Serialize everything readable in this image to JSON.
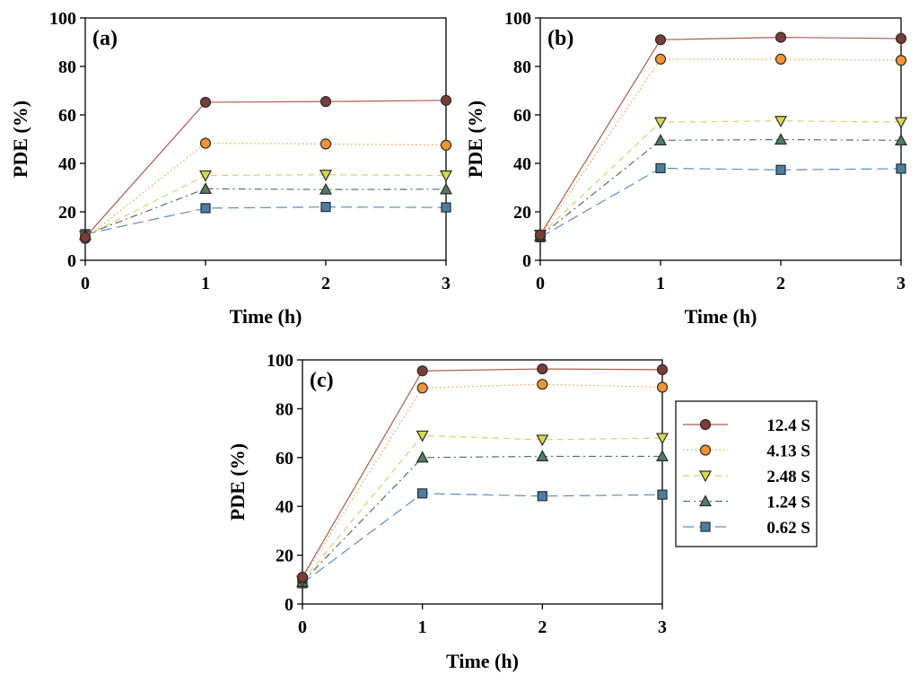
{
  "chart_data": [
    {
      "type": "line",
      "panel_label": "(a)",
      "xlabel": "Time (h)",
      "ylabel": "PDE (%)",
      "x": [
        0,
        1,
        2,
        3
      ],
      "xticks": [
        "0",
        "1",
        "2",
        "3"
      ],
      "yticks": [
        "0",
        "20",
        "40",
        "60",
        "80",
        "100"
      ],
      "xlim": [
        0,
        3
      ],
      "ylim": [
        0,
        100
      ],
      "series": [
        {
          "name": "12.4 S",
          "values": [
            9.5,
            65.2,
            65.5,
            66.0
          ]
        },
        {
          "name": "4.13 S",
          "values": [
            9.0,
            48.3,
            48.0,
            47.5
          ]
        },
        {
          "name": "2.48 S",
          "values": [
            10.0,
            35.0,
            35.3,
            35.0
          ]
        },
        {
          "name": "1.24 S",
          "values": [
            10.5,
            29.5,
            29.2,
            29.3
          ]
        },
        {
          "name": "0.62 S",
          "values": [
            10.8,
            21.5,
            22.0,
            21.8
          ]
        }
      ]
    },
    {
      "type": "line",
      "panel_label": "(b)",
      "xlabel": "Time (h)",
      "ylabel": "PDE (%)",
      "x": [
        0,
        1,
        2,
        3
      ],
      "xticks": [
        "0",
        "1",
        "2",
        "3"
      ],
      "yticks": [
        "0",
        "20",
        "40",
        "60",
        "80",
        "100"
      ],
      "xlim": [
        0,
        3
      ],
      "ylim": [
        0,
        100
      ],
      "series": [
        {
          "name": "12.4 S",
          "values": [
            10.5,
            91.0,
            92.0,
            91.5
          ]
        },
        {
          "name": "4.13 S",
          "values": [
            10.0,
            83.0,
            83.0,
            82.5
          ]
        },
        {
          "name": "2.48 S",
          "values": [
            10.5,
            57.0,
            57.5,
            57.0
          ]
        },
        {
          "name": "1.24 S",
          "values": [
            10.0,
            49.5,
            49.8,
            49.5
          ]
        },
        {
          "name": "0.62 S",
          "values": [
            9.5,
            38.0,
            37.3,
            37.8
          ]
        }
      ]
    },
    {
      "type": "line",
      "panel_label": "(c)",
      "xlabel": "Time (h)",
      "ylabel": "PDE (%)",
      "x": [
        0,
        1,
        2,
        3
      ],
      "xticks": [
        "0",
        "1",
        "2",
        "3"
      ],
      "yticks": [
        "0",
        "20",
        "40",
        "60",
        "80",
        "100"
      ],
      "xlim": [
        0,
        3
      ],
      "ylim": [
        0,
        100
      ],
      "legend_position": "right",
      "series": [
        {
          "name": "12.4 S",
          "values": [
            11.0,
            95.5,
            96.3,
            96.0
          ]
        },
        {
          "name": "4.13 S",
          "values": [
            10.5,
            88.5,
            90.0,
            88.8
          ]
        },
        {
          "name": "2.48 S",
          "values": [
            9.5,
            69.0,
            67.3,
            68.0
          ]
        },
        {
          "name": "1.24 S",
          "values": [
            9.0,
            60.0,
            60.5,
            60.5
          ]
        },
        {
          "name": "0.62 S",
          "values": [
            8.5,
            45.3,
            44.2,
            44.8
          ]
        }
      ]
    }
  ],
  "series_styles": [
    {
      "name": "12.4 S",
      "line_color": "#b05a4a",
      "marker_fill": "#7a3c35",
      "marker": "circle",
      "dash": "none"
    },
    {
      "name": "4.13 S",
      "line_color": "#f0a040",
      "marker_fill": "#f29433",
      "marker": "circle",
      "dash": "dotted"
    },
    {
      "name": "2.48 S",
      "line_color": "#d8d070",
      "marker_fill": "#d9d84f",
      "marker": "triangle-down",
      "dash": "dashed"
    },
    {
      "name": "1.24 S",
      "line_color": "#507060",
      "marker_fill": "#4f7f5e",
      "marker": "triangle-up",
      "dash": "dashdot"
    },
    {
      "name": "0.62 S",
      "line_color": "#5a8cc0",
      "marker_fill": "#4a7fa6",
      "marker": "square",
      "dash": "longdash"
    }
  ]
}
